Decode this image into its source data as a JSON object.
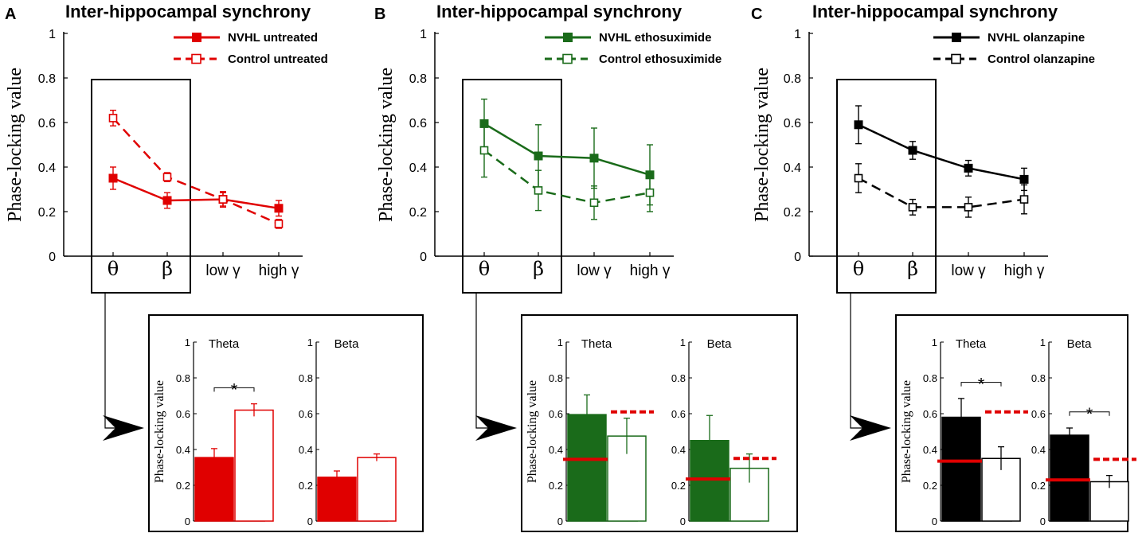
{
  "chart_data": [
    {
      "type": "line",
      "panel": "A",
      "title": "Inter-hippocampal synchrony",
      "ylabel": "Phase-locking value",
      "ylim": [
        0,
        1
      ],
      "yticks": [
        "0",
        "0.2",
        "0.4",
        "0.6",
        "0.8",
        "1"
      ],
      "categories": [
        "θ",
        "β",
        "low γ",
        "high γ"
      ],
      "color": "#e00000",
      "series": [
        {
          "name": "NVHL untreated",
          "values": [
            0.35,
            0.25,
            0.255,
            0.215
          ],
          "errors": [
            0.05,
            0.035,
            0.035,
            0.035
          ],
          "style": "solid",
          "marker": "filled"
        },
        {
          "name": "Control untreated",
          "values": [
            0.62,
            0.355,
            0.255,
            0.145
          ],
          "errors": [
            0.035,
            0.02,
            0.03,
            0.02
          ],
          "style": "dashed",
          "marker": "open"
        }
      ],
      "inset": {
        "ylabel": "Phase-locking value",
        "yticks": [
          "0",
          "0.2",
          "0.4",
          "0.6",
          "0.8",
          "1"
        ],
        "groups": [
          {
            "title": "Theta",
            "values": [
              0.355,
              0.62
            ],
            "errors": [
              0.05,
              0.035
            ],
            "significant": true,
            "ref_solid": null,
            "ref_dashed": null
          },
          {
            "title": "Beta",
            "values": [
              0.245,
              0.355
            ],
            "errors": [
              0.035,
              0.02
            ],
            "significant": false,
            "ref_solid": null,
            "ref_dashed": null
          }
        ],
        "star": "*"
      }
    },
    {
      "type": "line",
      "panel": "B",
      "title": "Inter-hippocampal synchrony",
      "ylabel": "Phase-locking value",
      "ylim": [
        0,
        1
      ],
      "yticks": [
        "0",
        "0.2",
        "0.4",
        "0.6",
        "0.8",
        "1"
      ],
      "categories": [
        "θ",
        "β",
        "low γ",
        "high γ"
      ],
      "color": "#1a6b1a",
      "series": [
        {
          "name": "NVHL ethosuximide",
          "values": [
            0.595,
            0.45,
            0.44,
            0.365
          ],
          "errors": [
            0.11,
            0.14,
            0.135,
            0.135
          ],
          "style": "solid",
          "marker": "filled"
        },
        {
          "name": "Control ethosuximide",
          "values": [
            0.475,
            0.295,
            0.24,
            0.285
          ],
          "errors": [
            0.12,
            0.09,
            0.075,
            0.085
          ],
          "style": "dashed",
          "marker": "open"
        }
      ],
      "inset": {
        "ylabel": "Phase-locking value",
        "yticks": [
          "0",
          "0.2",
          "0.4",
          "0.6",
          "0.8",
          "1"
        ],
        "groups": [
          {
            "title": "Theta",
            "values": [
              0.595,
              0.475
            ],
            "errors": [
              0.11,
              0.1
            ],
            "significant": false,
            "ref_solid": 0.345,
            "ref_dashed": 0.61
          },
          {
            "title": "Beta",
            "values": [
              0.45,
              0.295
            ],
            "errors": [
              0.14,
              0.08
            ],
            "significant": false,
            "ref_solid": 0.235,
            "ref_dashed": 0.35
          }
        ],
        "star": ""
      }
    },
    {
      "type": "line",
      "panel": "C",
      "title": "Inter-hippocampal synchrony",
      "ylabel": "Phase-locking value",
      "ylim": [
        0,
        1
      ],
      "yticks": [
        "0",
        "0.2",
        "0.4",
        "0.6",
        "0.8",
        "1"
      ],
      "categories": [
        "θ",
        "β",
        "low γ",
        "high γ"
      ],
      "color": "#000000",
      "series": [
        {
          "name": "NVHL olanzapine",
          "values": [
            0.59,
            0.475,
            0.395,
            0.345
          ],
          "errors": [
            0.085,
            0.04,
            0.035,
            0.05
          ],
          "style": "solid",
          "marker": "filled"
        },
        {
          "name": "Control olanzapine",
          "values": [
            0.35,
            0.22,
            0.22,
            0.255
          ],
          "errors": [
            0.065,
            0.035,
            0.045,
            0.065
          ],
          "style": "dashed",
          "marker": "open"
        }
      ],
      "inset": {
        "ylabel": "Phase-locking value",
        "yticks": [
          "0",
          "0.2",
          "0.4",
          "0.6",
          "0.8",
          "1"
        ],
        "groups": [
          {
            "title": "Theta",
            "values": [
              0.58,
              0.35
            ],
            "errors": [
              0.105,
              0.065
            ],
            "significant": true,
            "ref_solid": 0.335,
            "ref_dashed": 0.61
          },
          {
            "title": "Beta",
            "values": [
              0.48,
              0.22
            ],
            "errors": [
              0.04,
              0.035
            ],
            "significant": true,
            "ref_solid": 0.23,
            "ref_dashed": 0.345
          }
        ],
        "star": "*"
      }
    }
  ],
  "colors": {
    "reference": "#e00000",
    "axis": "#000000"
  }
}
